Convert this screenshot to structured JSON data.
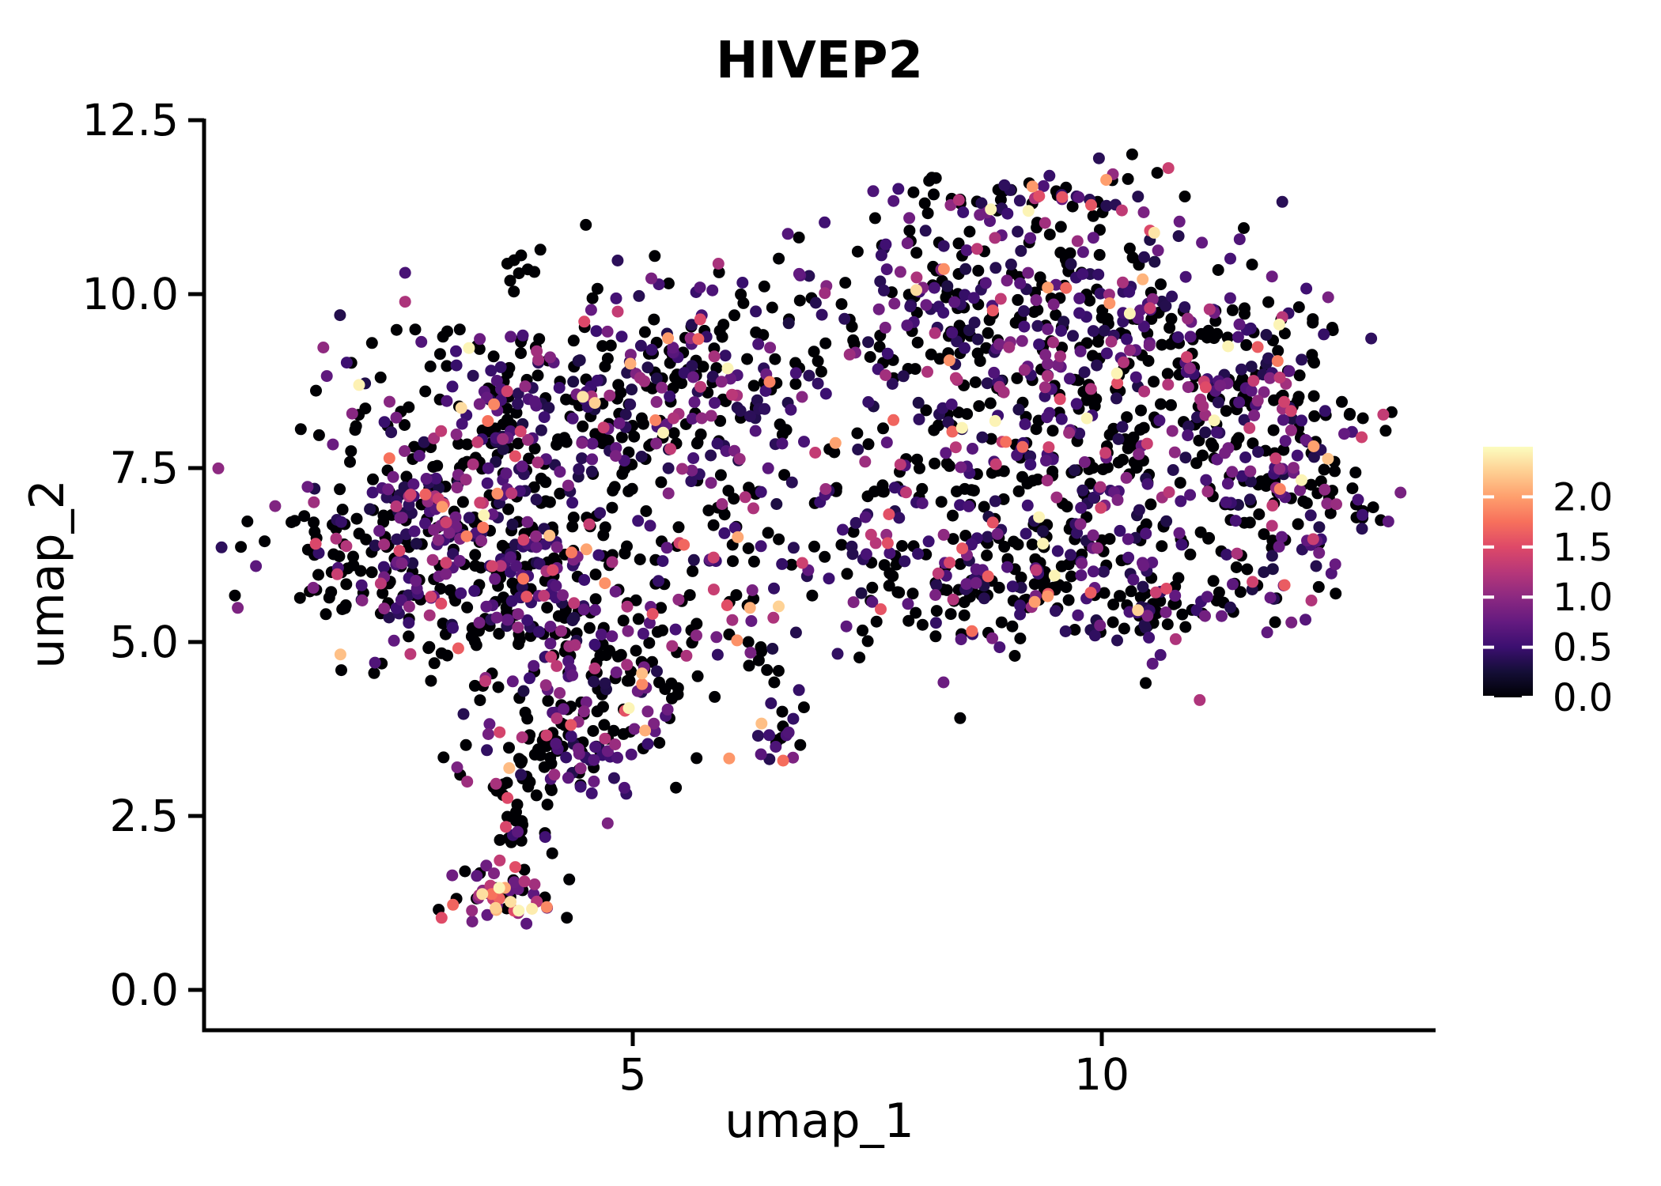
{
  "figure": {
    "title": "HIVEP2",
    "background": "#ffffff"
  },
  "chart_data": {
    "type": "scatter",
    "subtype": "umap-feature-plot",
    "title": "HIVEP2",
    "xlabel": "umap_1",
    "ylabel": "umap_2",
    "grid": false,
    "point_radius_px": 7.5,
    "point_zero_color": "#000004",
    "xlim": [
      0.45,
      13.55
    ],
    "ylim": [
      -0.6,
      12.55
    ],
    "x_ticks": [
      {
        "value": 5,
        "label": "5"
      },
      {
        "value": 10,
        "label": "10"
      }
    ],
    "y_ticks": [
      {
        "value": 0.0,
        "label": "0.0"
      },
      {
        "value": 2.5,
        "label": "2.5"
      },
      {
        "value": 5.0,
        "label": "5.0"
      },
      {
        "value": 7.5,
        "label": "7.5"
      },
      {
        "value": 10.0,
        "label": "10.0"
      },
      {
        "value": 12.5,
        "label": "12.5"
      }
    ],
    "colorbar": {
      "position": "right",
      "domain": [
        0,
        2.5
      ],
      "ticks": [
        {
          "value": 0.0,
          "label": "0.0"
        },
        {
          "value": 0.5,
          "label": "0.5"
        },
        {
          "value": 1.0,
          "label": "1.0"
        },
        {
          "value": 1.5,
          "label": "1.5"
        },
        {
          "value": 2.0,
          "label": "2.0"
        }
      ],
      "colormap": "magma",
      "stops": [
        [
          0.0,
          "#000004"
        ],
        [
          0.1,
          "#140e36"
        ],
        [
          0.2,
          "#3b0f70"
        ],
        [
          0.3,
          "#641a80"
        ],
        [
          0.4,
          "#8c2981"
        ],
        [
          0.5,
          "#b73779"
        ],
        [
          0.6,
          "#de4968"
        ],
        [
          0.7,
          "#f7705c"
        ],
        [
          0.8,
          "#fe9f6d"
        ],
        [
          0.9,
          "#fecf92"
        ],
        [
          1.0,
          "#fcfdbf"
        ]
      ]
    },
    "seed": 7,
    "n_points_total": 2608,
    "clusters": [
      {
        "cx": 3.3,
        "cy": 7.7,
        "sx": 0.85,
        "sy": 0.85,
        "n": 220,
        "zero_frac": 0.5,
        "expr_offset": 0.3,
        "expr_scale": 0.5
      },
      {
        "cx": 4.5,
        "cy": 8.7,
        "sx": 0.75,
        "sy": 0.65,
        "n": 150,
        "zero_frac": 0.48,
        "expr_offset": 0.3,
        "expr_scale": 0.5
      },
      {
        "cx": 2.55,
        "cy": 6.2,
        "sx": 0.65,
        "sy": 0.6,
        "n": 140,
        "zero_frac": 0.5,
        "expr_offset": 0.3,
        "expr_scale": 0.5
      },
      {
        "cx": 3.9,
        "cy": 6.0,
        "sx": 1.0,
        "sy": 0.85,
        "n": 270,
        "zero_frac": 0.5,
        "expr_offset": 0.3,
        "expr_scale": 0.5
      },
      {
        "cx": 4.55,
        "cy": 4.6,
        "sx": 0.65,
        "sy": 0.75,
        "n": 160,
        "zero_frac": 0.52,
        "expr_offset": 0.3,
        "expr_scale": 0.55
      },
      {
        "cx": 4.25,
        "cy": 3.45,
        "sx": 0.5,
        "sy": 0.35,
        "n": 80,
        "zero_frac": 0.55,
        "expr_offset": 0.3,
        "expr_scale": 0.55
      },
      {
        "cx": 3.8,
        "cy": 2.5,
        "sx": 0.22,
        "sy": 0.4,
        "n": 30,
        "zero_frac": 0.6,
        "expr_offset": 0.35,
        "expr_scale": 0.5
      },
      {
        "cx": 3.62,
        "cy": 1.35,
        "sx": 0.3,
        "sy": 0.22,
        "n": 55,
        "zero_frac": 0.28,
        "expr_offset": 0.7,
        "expr_scale": 0.65
      },
      {
        "cx": 3.72,
        "cy": 10.3,
        "sx": 0.12,
        "sy": 0.15,
        "n": 8,
        "zero_frac": 1.0,
        "expr_offset": 0.3,
        "expr_scale": 0.4
      },
      {
        "cx": 5.35,
        "cy": 9.0,
        "sx": 0.45,
        "sy": 0.6,
        "n": 70,
        "zero_frac": 0.5,
        "expr_offset": 0.3,
        "expr_scale": 0.5
      },
      {
        "cx": 6.3,
        "cy": 7.8,
        "sx": 0.6,
        "sy": 1.3,
        "n": 110,
        "zero_frac": 0.52,
        "expr_offset": 0.3,
        "expr_scale": 0.5
      },
      {
        "cx": 6.62,
        "cy": 3.72,
        "sx": 0.16,
        "sy": 0.26,
        "n": 20,
        "zero_frac": 0.45,
        "expr_offset": 0.35,
        "expr_scale": 0.55
      },
      {
        "cx": 6.4,
        "cy": 4.7,
        "sx": 0.13,
        "sy": 0.3,
        "n": 10,
        "zero_frac": 0.6,
        "expr_offset": 0.3,
        "expr_scale": 0.4
      },
      {
        "cx": 8.9,
        "cy": 9.9,
        "sx": 1.05,
        "sy": 0.7,
        "n": 270,
        "zero_frac": 0.47,
        "expr_offset": 0.3,
        "expr_scale": 0.52
      },
      {
        "cx": 9.3,
        "cy": 11.35,
        "sx": 0.75,
        "sy": 0.28,
        "n": 65,
        "zero_frac": 0.42,
        "expr_offset": 0.35,
        "expr_scale": 0.55
      },
      {
        "cx": 9.6,
        "cy": 7.6,
        "sx": 1.3,
        "sy": 1.0,
        "n": 430,
        "zero_frac": 0.5,
        "expr_offset": 0.3,
        "expr_scale": 0.5
      },
      {
        "cx": 11.25,
        "cy": 8.9,
        "sx": 0.75,
        "sy": 0.75,
        "n": 160,
        "zero_frac": 0.52,
        "expr_offset": 0.3,
        "expr_scale": 0.5
      },
      {
        "cx": 12.05,
        "cy": 7.3,
        "sx": 0.45,
        "sy": 0.75,
        "n": 120,
        "zero_frac": 0.45,
        "expr_offset": 0.3,
        "expr_scale": 0.55
      },
      {
        "cx": 8.3,
        "cy": 5.9,
        "sx": 0.9,
        "sy": 0.5,
        "n": 120,
        "zero_frac": 0.55,
        "expr_offset": 0.3,
        "expr_scale": 0.5
      },
      {
        "cx": 10.3,
        "cy": 5.65,
        "sx": 0.85,
        "sy": 0.4,
        "n": 110,
        "zero_frac": 0.55,
        "expr_offset": 0.3,
        "expr_scale": 0.5
      },
      {
        "cx": 6.1,
        "cy": 10.2,
        "sx": 0.5,
        "sy": 0.3,
        "n": 10,
        "zero_frac": 0.7,
        "expr_offset": 0.3,
        "expr_scale": 0.4
      }
    ]
  }
}
